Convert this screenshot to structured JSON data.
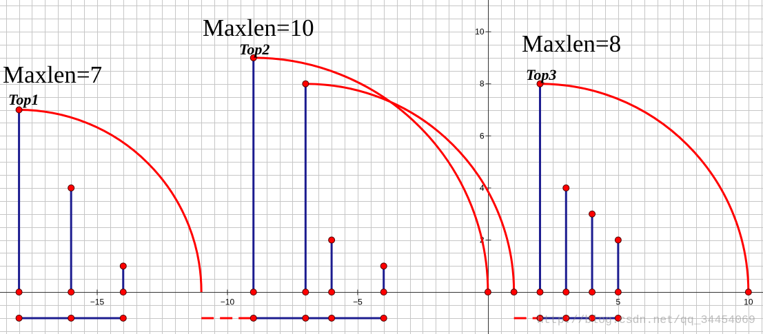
{
  "chart_data": {
    "type": "scatter",
    "xlim": [
      -18.73,
      10.56
    ],
    "ylim": [
      -1.61,
      11.22
    ],
    "grid": true,
    "x_ticks": [
      {
        "value": -15,
        "label": "−15"
      },
      {
        "value": -10,
        "label": "−10"
      },
      {
        "value": -5,
        "label": "−5"
      },
      {
        "value": 5,
        "label": "5"
      },
      {
        "value": 10,
        "label": "10"
      }
    ],
    "y_ticks": [
      {
        "value": 2,
        "label": "2"
      },
      {
        "value": 4,
        "label": "4"
      },
      {
        "value": 6,
        "label": "6"
      },
      {
        "value": 8,
        "label": "8"
      },
      {
        "value": 10,
        "label": "10"
      }
    ],
    "groups": [
      {
        "annotation": "Maxlen=7",
        "top_label": "Top1",
        "sticks": [
          {
            "x": -18,
            "y": 7
          },
          {
            "x": -16,
            "y": 4
          },
          {
            "x": -14,
            "y": 1
          }
        ],
        "arcs": [
          {
            "center": [
              -18,
              0
            ],
            "radius": 7,
            "end_point": false
          }
        ],
        "base_row": {
          "y": -1,
          "dashed": null,
          "solid": [
            -18,
            -14
          ],
          "points": [
            -18,
            -16,
            -14
          ]
        }
      },
      {
        "annotation": "Maxlen=10",
        "top_label": "Top2",
        "sticks": [
          {
            "x": -9,
            "y": 9
          },
          {
            "x": -7,
            "y": 8
          },
          {
            "x": -6,
            "y": 2
          },
          {
            "x": -4,
            "y": 1
          }
        ],
        "arcs": [
          {
            "center": [
              -9,
              0
            ],
            "radius": 9,
            "end_point": true
          },
          {
            "center": [
              -7,
              0
            ],
            "radius": 8,
            "end_point": true
          }
        ],
        "base_row": {
          "y": -1,
          "dashed": [
            -11,
            -9
          ],
          "solid": [
            -9,
            -4
          ],
          "points": [
            -9,
            -7,
            -6,
            -4
          ]
        }
      },
      {
        "annotation": "Maxlen=8",
        "top_label": "Top3",
        "sticks": [
          {
            "x": 2,
            "y": 8
          },
          {
            "x": 3,
            "y": 4
          },
          {
            "x": 4,
            "y": 3
          },
          {
            "x": 5,
            "y": 2
          }
        ],
        "arcs": [
          {
            "center": [
              2,
              0
            ],
            "radius": 8,
            "end_point": true
          }
        ],
        "base_row": {
          "y": -1,
          "dashed": [
            1,
            2
          ],
          "solid": [
            2,
            5
          ],
          "points": [
            2,
            3,
            4,
            5
          ]
        }
      }
    ]
  },
  "colors": {
    "stick": "#1c1c8f",
    "arc": "#ff0000",
    "dashed_gap": "#ff0000",
    "point_fill": "#ff0000",
    "point_stroke": "#4a0000",
    "grid": "#c6c6c6",
    "axis": "#333333"
  },
  "watermark": "http://blog.csdn.net/qq_34454069"
}
